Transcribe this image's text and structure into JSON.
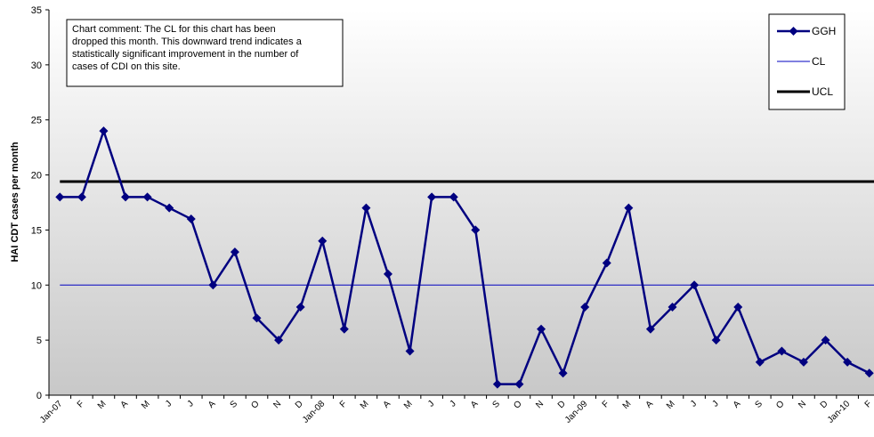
{
  "chart_data": {
    "type": "line",
    "ylabel": "HAI CDT cases per month",
    "ylim": [
      0,
      35
    ],
    "yticks": [
      0,
      5,
      10,
      15,
      20,
      25,
      30,
      35
    ],
    "categories": [
      "Jan-07",
      "F",
      "M",
      "A",
      "M",
      "J",
      "J",
      "A",
      "S",
      "O",
      "N",
      "D",
      "Jan-08",
      "F",
      "M",
      "A",
      "M",
      "J",
      "J",
      "A",
      "S",
      "O",
      "N",
      "D",
      "Jan-09",
      "F",
      "M",
      "A",
      "M",
      "J",
      "J",
      "A",
      "S",
      "O",
      "N",
      "D",
      "Jan-10",
      "F"
    ],
    "series": [
      {
        "name": "GGH",
        "color": "#000080",
        "marker": "diamond",
        "values": [
          18,
          18,
          24,
          18,
          18,
          17,
          16,
          10,
          13,
          7,
          5,
          8,
          14,
          6,
          17,
          11,
          4,
          18,
          18,
          15,
          1,
          1,
          6,
          2,
          8,
          12,
          17,
          6,
          8,
          10,
          5,
          8,
          3,
          4,
          3,
          5,
          3,
          2
        ]
      }
    ],
    "reference_lines": [
      {
        "name": "CL",
        "value": 10,
        "color": "#0000c0",
        "width": "thin"
      },
      {
        "name": "UCL",
        "value": 19.4,
        "color": "#000000",
        "width": "thick"
      }
    ],
    "legend": {
      "position": "top-right",
      "items": [
        "GGH",
        "CL",
        "UCL"
      ]
    },
    "annotation": {
      "lines": [
        "Chart comment: The CL for this chart has been",
        "dropped this month.  This downward trend indicates a",
        "statistically significant improvement in the number of",
        "cases of CDI on this site."
      ]
    },
    "grid": false,
    "plot_background": "gradient grey"
  }
}
